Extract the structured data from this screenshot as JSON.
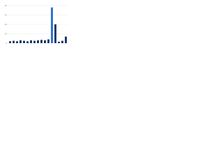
{
  "chart_data": {
    "type": "bar",
    "categories": [
      null,
      null,
      null,
      null,
      null,
      null,
      null,
      null,
      null,
      null,
      null,
      null,
      null,
      null,
      null,
      null,
      null
    ],
    "values": [
      2,
      2.5,
      2,
      3,
      2.5,
      2,
      3,
      2.5,
      3,
      3.5,
      3,
      4,
      38,
      20,
      1.5,
      2.5,
      7
    ],
    "colors": [
      "#1b3a6b",
      "#1b3a6b",
      "#1b3a6b",
      "#1b3a6b",
      "#1b3a6b",
      "#1b3a6b",
      "#1b3a6b",
      "#1b3a6b",
      "#1b3a6b",
      "#1b3a6b",
      "#1b3a6b",
      "#1b3a6b",
      "#2f74d0",
      "#1b3a6b",
      "#1b3a6b",
      "#1b3a6b",
      "#1b3a6b"
    ],
    "ylim": [
      0,
      40
    ],
    "yticks": [
      0,
      10,
      20,
      30,
      40
    ],
    "grid": true
  }
}
